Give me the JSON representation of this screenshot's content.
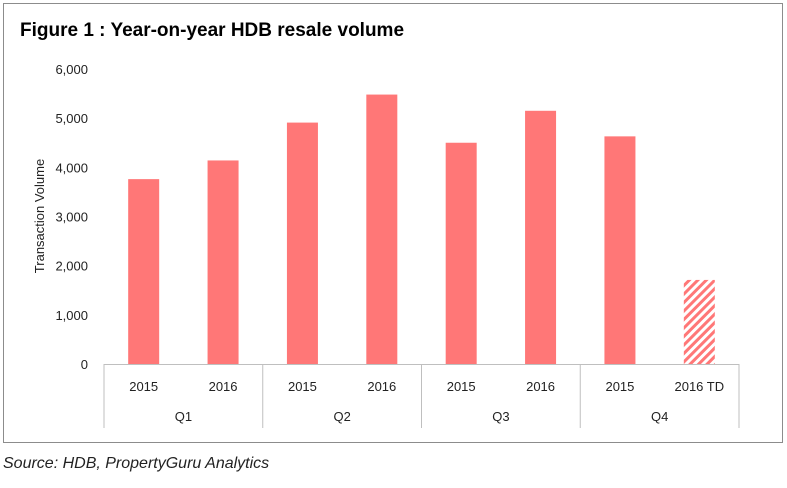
{
  "title": "Figure 1 : Year-on-year HDB resale volume",
  "source": "Source: HDB, PropertyGuru Analytics",
  "chart_data": {
    "type": "bar",
    "title": "Figure 1 : Year-on-year HDB resale volume",
    "ylabel": "Transaction Volume",
    "xlabel": "",
    "ylim": [
      0,
      6000
    ],
    "yticks": [
      "0",
      "1,000",
      "2,000",
      "3,000",
      "4,000",
      "5,000",
      "6,000"
    ],
    "grid": false,
    "legend": "none",
    "groups": [
      "Q1",
      "Q2",
      "Q3",
      "Q4"
    ],
    "categories": [
      "2015",
      "2016",
      "2015",
      "2016",
      "2015",
      "2016",
      "2015",
      "2016 TD"
    ],
    "values": [
      3760,
      4140,
      4910,
      5480,
      4500,
      5150,
      4630,
      1710
    ],
    "bar_color": "#ff7777",
    "hatched": [
      false,
      false,
      false,
      false,
      false,
      false,
      false,
      true
    ]
  }
}
